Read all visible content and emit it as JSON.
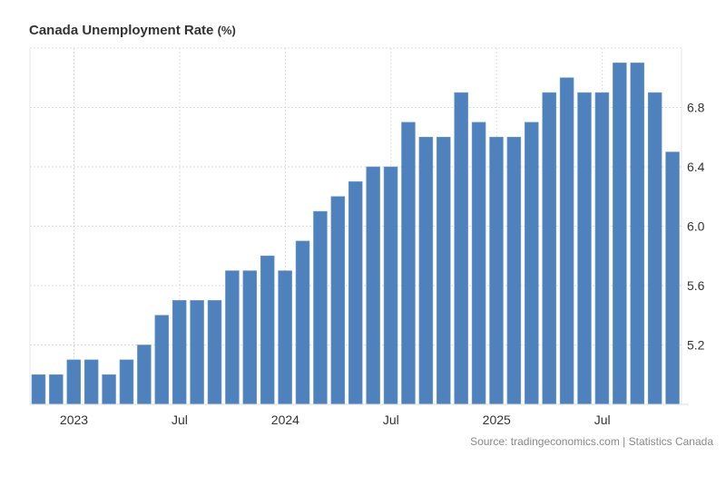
{
  "chart_data": {
    "type": "bar",
    "title": "Canada Unemployment Rate",
    "unit": "(%)",
    "source": "Source: tradingeconomics.com | Statistics Canada",
    "color": "#4f81bd",
    "x": [
      "2022-11",
      "2022-12",
      "2023-01",
      "2023-02",
      "2023-03",
      "2023-04",
      "2023-05",
      "2023-06",
      "2023-07",
      "2023-08",
      "2023-09",
      "2023-10",
      "2023-11",
      "2023-12",
      "2024-01",
      "2024-02",
      "2024-03",
      "2024-04",
      "2024-05",
      "2024-06",
      "2024-07",
      "2024-08",
      "2024-09",
      "2024-10",
      "2024-11",
      "2024-12",
      "2025-01",
      "2025-02",
      "2025-03",
      "2025-04",
      "2025-05",
      "2025-06",
      "2025-07",
      "2025-08",
      "2025-09",
      "2025-10",
      "2025-11"
    ],
    "values": [
      5.0,
      5.0,
      5.1,
      5.1,
      5.0,
      5.1,
      5.2,
      5.4,
      5.5,
      5.5,
      5.5,
      5.7,
      5.7,
      5.8,
      5.7,
      5.9,
      6.1,
      6.2,
      6.3,
      6.4,
      6.4,
      6.7,
      6.6,
      6.6,
      6.9,
      6.7,
      6.6,
      6.6,
      6.7,
      6.9,
      7.0,
      6.9,
      6.9,
      7.1,
      7.1,
      6.9,
      6.5
    ],
    "ylim": [
      4.8,
      7.2
    ],
    "yticks": [
      "5.2",
      "5.6",
      "6.0",
      "6.4",
      "6.8"
    ],
    "xticks": [
      {
        "label": "2023",
        "at": "2023-01"
      },
      {
        "label": "Jul",
        "at": "2023-07"
      },
      {
        "label": "2024",
        "at": "2024-01"
      },
      {
        "label": "Jul",
        "at": "2024-07"
      },
      {
        "label": "2025",
        "at": "2025-01"
      },
      {
        "label": "Jul",
        "at": "2025-07"
      }
    ],
    "grid": true,
    "yaxis_position": "right"
  }
}
